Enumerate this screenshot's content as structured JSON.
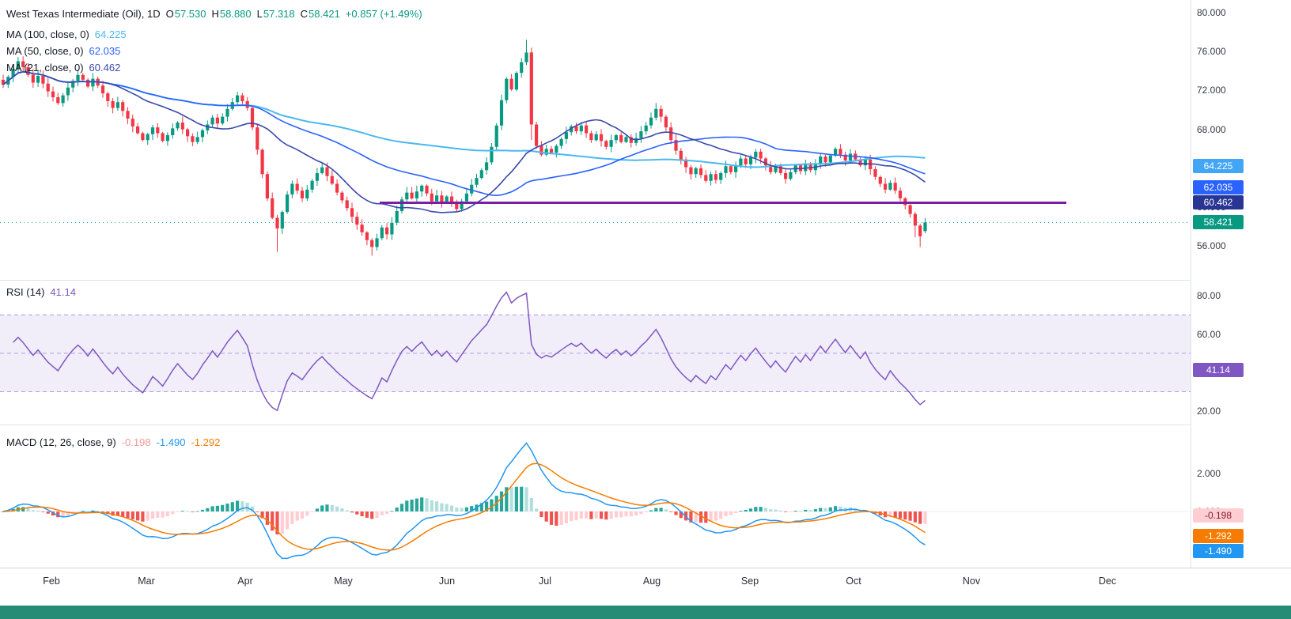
{
  "header": {
    "symbol_title": "West Texas Intermediate (Oil), 1D",
    "ohlc": [
      {
        "label": "O",
        "value": "57.530"
      },
      {
        "label": "H",
        "value": "58.880"
      },
      {
        "label": "L",
        "value": "57.318"
      },
      {
        "label": "C",
        "value": "58.421"
      }
    ],
    "change": "+0.857 (+1.49%)"
  },
  "indicators": {
    "ma100": {
      "label": "MA (100, close, 0)",
      "value": "64.225",
      "color": "#4bb8ef"
    },
    "ma50": {
      "label": "MA (50, close, 0)",
      "value": "62.035",
      "color": "#2962ff"
    },
    "ma21": {
      "label": "MA (21, close, 0)",
      "value": "60.462",
      "color": "#3949ab"
    },
    "rsi": {
      "label": "RSI (14)",
      "value": "41.14",
      "color": "#7e57c2"
    },
    "macd": {
      "label": "MACD (12, 26, close, 9)",
      "hist_value": "-0.198",
      "macd_value": "-1.490",
      "signal_value": "-1.292",
      "hist_color": "#ef9a9a",
      "macd_color": "#2196f3",
      "signal_color": "#f57c00"
    }
  },
  "axis": {
    "price_labels": [
      "80.000",
      "76.000",
      "72.000",
      "68.000",
      "64.000",
      "60.000",
      "56.000"
    ],
    "rsi_labels": [
      "80.00",
      "60.00",
      "40.00",
      "20.00"
    ],
    "macd_labels": [
      "2.000",
      "0.000"
    ],
    "months": [
      "Feb",
      "Mar",
      "Apr",
      "May",
      "Jun",
      "Jul",
      "Aug",
      "Sep",
      "Oct",
      "Nov",
      "Dec"
    ]
  },
  "badges": {
    "price": [
      {
        "text": "64.225",
        "value": 64.225,
        "bg": "#42a5f5"
      },
      {
        "text": "62.035",
        "value": 62.035,
        "bg": "#2962ff"
      },
      {
        "text": "60.462",
        "value": 60.462,
        "bg": "#283593"
      },
      {
        "text": "58.421",
        "value": 58.421,
        "bg": "#089981"
      }
    ],
    "rsi": [
      {
        "text": "41.14",
        "value": 41.14,
        "bg": "#7e57c2"
      }
    ],
    "macd": [
      {
        "text": "-0.198",
        "value": -0.198,
        "bg": "#ffcdd2",
        "fg": "#7f1d2b"
      },
      {
        "text": "-1.292",
        "value": -1.292,
        "bg": "#f57c00"
      },
      {
        "text": "-1.490",
        "value": -1.49,
        "bg": "#2196f3"
      }
    ]
  },
  "colors": {
    "candle_up": "#089981",
    "candle_down": "#f23645",
    "support_line": "#7b1fa2",
    "last_price_line": "#089981",
    "rsi_band": "rgba(126,87,194,0.10)",
    "rsi_dash": "#ab9ce0",
    "hist_grow_above": "#26a69a",
    "hist_fall_above": "#b2dfdb",
    "hist_grow_below": "#ffcdd2",
    "hist_fall_below": "#ef5350",
    "footer_bar": "#268c76"
  },
  "chart_data": {
    "type": "candlestick",
    "symbol": "West Texas Intermediate (Oil)",
    "timeframe": "1D",
    "price_axis_range": [
      52.5,
      81.3
    ],
    "categories_months": [
      "Feb",
      "Mar",
      "Apr",
      "May",
      "Jun",
      "Jul",
      "Aug",
      "Sep",
      "Oct"
    ],
    "close": [
      72.6,
      73.4,
      74.2,
      75.0,
      74.4,
      73.6,
      72.8,
      73.5,
      72.7,
      71.9,
      71.3,
      70.7,
      71.5,
      72.3,
      73.0,
      73.6,
      73.1,
      72.4,
      73.2,
      72.5,
      71.7,
      70.9,
      70.2,
      70.8,
      69.9,
      69.1,
      68.3,
      67.6,
      66.9,
      67.5,
      68.2,
      67.6,
      66.8,
      67.4,
      68.1,
      68.7,
      68.0,
      67.3,
      66.7,
      67.2,
      67.9,
      68.5,
      69.2,
      68.6,
      69.3,
      70.1,
      70.8,
      71.5,
      70.9,
      70.2,
      68.2,
      65.9,
      63.4,
      60.9,
      58.9,
      57.8,
      59.5,
      61.3,
      62.4,
      61.7,
      60.9,
      61.8,
      62.7,
      63.5,
      64.1,
      63.2,
      62.4,
      61.5,
      60.7,
      59.9,
      59.0,
      58.2,
      57.4,
      56.6,
      55.9,
      56.8,
      57.9,
      57.2,
      58.4,
      59.6,
      60.8,
      61.5,
      60.9,
      61.6,
      62.2,
      61.4,
      60.6,
      61.2,
      60.5,
      61.1,
      60.4,
      59.8,
      60.6,
      61.4,
      62.3,
      63.0,
      63.8,
      64.6,
      66.2,
      68.4,
      71.0,
      73.2,
      72.1,
      73.8,
      74.9,
      75.9,
      68.5,
      66.3,
      65.4,
      66.0,
      65.6,
      66.3,
      67.0,
      67.7,
      68.3,
      67.8,
      68.4,
      67.6,
      66.9,
      67.5,
      66.8,
      66.2,
      66.9,
      67.4,
      66.7,
      67.2,
      66.6,
      67.1,
      67.8,
      68.4,
      69.2,
      70.1,
      69.3,
      68.2,
      66.9,
      65.8,
      64.9,
      64.1,
      63.4,
      64.0,
      63.3,
      62.7,
      63.4,
      62.8,
      63.5,
      64.2,
      63.6,
      64.3,
      65.0,
      64.4,
      65.1,
      65.7,
      65.0,
      64.3,
      63.6,
      64.2,
      63.5,
      62.9,
      63.6,
      64.3,
      63.7,
      64.4,
      63.8,
      64.5,
      65.2,
      64.6,
      65.3,
      66.0,
      65.4,
      64.8,
      65.5,
      64.9,
      64.3,
      64.9,
      63.9,
      63.1,
      62.4,
      61.8,
      62.5,
      61.7,
      60.9,
      60.2,
      59.3,
      58.1,
      57.0,
      57.3
    ],
    "last_candle": {
      "open": 57.53,
      "high": 58.88,
      "low": 57.318,
      "close": 58.421
    },
    "wick_overrides": {
      "55": [
        0.3,
        2.4
      ],
      "74": [
        0.2,
        0.9
      ],
      "105": [
        1.3,
        0.3
      ],
      "106": [
        0.5,
        1.6
      ],
      "183": [
        0.2,
        1.2
      ],
      "184": [
        0.2,
        1.1
      ]
    },
    "support_line": {
      "price": 60.45,
      "color": "#7b1fa2"
    },
    "overlays": [
      {
        "name": "SMA",
        "period": 100,
        "current": 64.225
      },
      {
        "name": "SMA",
        "period": 50,
        "current": 62.035
      },
      {
        "name": "SMA",
        "period": 21,
        "current": 60.462
      }
    ],
    "rsi": {
      "period": 14,
      "current": 41.14,
      "band": [
        30,
        70
      ],
      "axis_range": [
        15,
        85
      ]
    },
    "macd": {
      "fast": 12,
      "slow": 26,
      "signal": 9,
      "current": {
        "histogram": -0.198,
        "macd": -1.49,
        "signal": -1.292
      },
      "axis_range": [
        -2.9,
        3.6
      ]
    }
  }
}
